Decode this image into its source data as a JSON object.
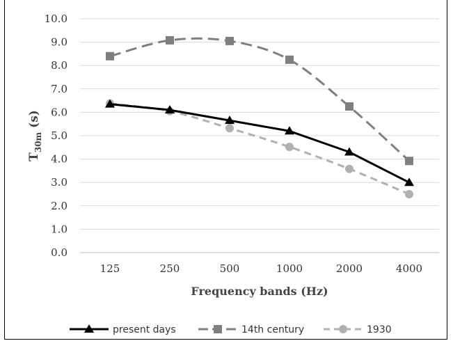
{
  "chart_data": {
    "type": "line",
    "categories": [
      "125",
      "250",
      "500",
      "1000",
      "2000",
      "4000"
    ],
    "xlabel": "Frequency bands (Hz)",
    "ylabel": {
      "main": "T",
      "sub": "30m",
      "unit": " (s)"
    },
    "ylim": [
      0,
      10
    ],
    "yticks": [
      "0.0",
      "1.0",
      "2.0",
      "3.0",
      "4.0",
      "5.0",
      "6.0",
      "7.0",
      "8.0",
      "9.0",
      "10.0"
    ],
    "grid": true,
    "legend_position": "bottom",
    "series": [
      {
        "name": "present days",
        "values": [
          6.35,
          6.1,
          5.65,
          5.2,
          4.3,
          3.0
        ],
        "color": "#000000",
        "dash": "solid",
        "marker": "triangle"
      },
      {
        "name": "14th century",
        "values": [
          8.4,
          9.08,
          9.05,
          8.25,
          6.25,
          3.92
        ],
        "color": "#7f7f7f",
        "dash": "long-dash",
        "marker": "square"
      },
      {
        "name": "1930",
        "values": [
          6.38,
          6.05,
          5.32,
          4.52,
          3.58,
          2.5
        ],
        "color": "#b0b0b0",
        "dash": "dash",
        "marker": "circle"
      }
    ]
  }
}
